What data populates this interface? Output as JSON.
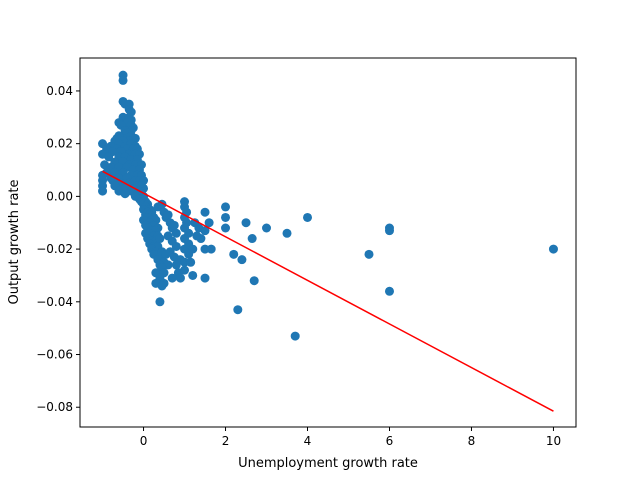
{
  "chart_data": {
    "type": "scatter",
    "xlabel": "Unemployment growth rate",
    "ylabel": "Output growth rate",
    "xlim": [
      -1.55,
      10.55
    ],
    "ylim": [
      -0.0875,
      0.0525
    ],
    "x_ticks": [
      {
        "value": 0,
        "label": "0"
      },
      {
        "value": 2,
        "label": "2"
      },
      {
        "value": 4,
        "label": "4"
      },
      {
        "value": 6,
        "label": "6"
      },
      {
        "value": 8,
        "label": "8"
      },
      {
        "value": 10,
        "label": "10"
      }
    ],
    "y_ticks": [
      {
        "value": 0.04,
        "label": "0.04"
      },
      {
        "value": 0.02,
        "label": "0.02"
      },
      {
        "value": 0.0,
        "label": "0.00"
      },
      {
        "value": -0.02,
        "label": "−0.02"
      },
      {
        "value": -0.04,
        "label": "−0.04"
      },
      {
        "value": -0.06,
        "label": "−0.06"
      },
      {
        "value": -0.08,
        "label": "−0.08"
      }
    ],
    "grid": false,
    "series": [
      {
        "kind": "scatter",
        "color": "#1f77b4",
        "points": [
          [
            -0.5,
            0.046
          ],
          [
            -0.5,
            0.044
          ],
          [
            -0.5,
            0.036
          ],
          [
            -0.45,
            0.035
          ],
          [
            -0.35,
            0.035
          ],
          [
            -0.35,
            0.033
          ],
          [
            -0.3,
            0.032
          ],
          [
            -0.5,
            0.03
          ],
          [
            -0.45,
            0.029
          ],
          [
            -0.35,
            0.03
          ],
          [
            -0.3,
            0.029
          ],
          [
            -0.4,
            0.028
          ],
          [
            -0.6,
            0.028
          ],
          [
            -0.55,
            0.027
          ],
          [
            -0.3,
            0.027
          ],
          [
            -0.25,
            0.026
          ],
          [
            -0.3,
            0.025
          ],
          [
            -0.45,
            0.025
          ],
          [
            -0.4,
            0.024
          ],
          [
            -0.6,
            0.023
          ],
          [
            -0.65,
            0.022
          ],
          [
            -0.55,
            0.022
          ],
          [
            -0.4,
            0.022
          ],
          [
            -0.3,
            0.023
          ],
          [
            -0.25,
            0.022
          ],
          [
            -0.2,
            0.022
          ],
          [
            -0.35,
            0.021
          ],
          [
            -0.5,
            0.021
          ],
          [
            -0.7,
            0.021
          ],
          [
            -1.0,
            0.02
          ],
          [
            -0.6,
            0.02
          ],
          [
            -0.45,
            0.019
          ],
          [
            -0.3,
            0.02
          ],
          [
            -0.2,
            0.019
          ],
          [
            -0.8,
            0.019
          ],
          [
            -0.9,
            0.018
          ],
          [
            -0.65,
            0.018
          ],
          [
            -0.4,
            0.018
          ],
          [
            -0.25,
            0.018
          ],
          [
            -0.15,
            0.018
          ],
          [
            -1.0,
            0.016
          ],
          [
            -0.75,
            0.017
          ],
          [
            -0.55,
            0.017
          ],
          [
            -0.35,
            0.016
          ],
          [
            -0.2,
            0.016
          ],
          [
            -0.1,
            0.016
          ],
          [
            -0.85,
            0.015
          ],
          [
            -0.6,
            0.015
          ],
          [
            -0.45,
            0.015
          ],
          [
            -0.3,
            0.014
          ],
          [
            -0.15,
            0.014
          ],
          [
            -0.7,
            0.013
          ],
          [
            -0.5,
            0.013
          ],
          [
            -0.35,
            0.012
          ],
          [
            -0.2,
            0.012
          ],
          [
            -0.05,
            0.012
          ],
          [
            -0.95,
            0.012
          ],
          [
            -0.8,
            0.011
          ],
          [
            -0.6,
            0.011
          ],
          [
            -0.4,
            0.011
          ],
          [
            -0.25,
            0.01
          ],
          [
            -0.1,
            0.01
          ],
          [
            -0.9,
            0.009
          ],
          [
            -0.7,
            0.009
          ],
          [
            -0.5,
            0.009
          ],
          [
            -0.3,
            0.008
          ],
          [
            -0.15,
            0.008
          ],
          [
            -0.05,
            0.008
          ],
          [
            -1.0,
            0.008
          ],
          [
            -0.8,
            0.007
          ],
          [
            -0.6,
            0.007
          ],
          [
            -0.4,
            0.007
          ],
          [
            -0.2,
            0.006
          ],
          [
            -0.1,
            0.006
          ],
          [
            0.0,
            0.006
          ],
          [
            -1.0,
            0.006
          ],
          [
            -0.75,
            0.006
          ],
          [
            -0.55,
            0.005
          ],
          [
            -0.35,
            0.005
          ],
          [
            -0.15,
            0.004
          ],
          [
            -0.05,
            0.004
          ],
          [
            0.0,
            0.003
          ],
          [
            -1.0,
            0.004
          ],
          [
            -0.7,
            0.004
          ],
          [
            -0.45,
            0.003
          ],
          [
            -0.25,
            0.003
          ],
          [
            -0.1,
            0.002
          ],
          [
            -1.0,
            0.002
          ],
          [
            -0.6,
            0.002
          ],
          [
            -0.3,
            0.002
          ],
          [
            -0.15,
            0.001
          ],
          [
            -0.05,
            0.001
          ],
          [
            0.0,
            0.0
          ],
          [
            -0.45,
            0.001
          ],
          [
            -0.2,
            0.0
          ],
          [
            -0.1,
            -0.001
          ],
          [
            0.0,
            -0.001
          ],
          [
            0.05,
            -0.002
          ],
          [
            -0.05,
            -0.002
          ],
          [
            0.0,
            -0.003
          ],
          [
            0.1,
            -0.003
          ],
          [
            0.05,
            -0.004
          ],
          [
            0.15,
            -0.005
          ],
          [
            0.0,
            -0.005
          ],
          [
            0.1,
            -0.006
          ],
          [
            0.2,
            -0.006
          ],
          [
            0.05,
            -0.007
          ],
          [
            0.15,
            -0.007
          ],
          [
            0.25,
            -0.008
          ],
          [
            0.1,
            -0.008
          ],
          [
            0.2,
            -0.009
          ],
          [
            0.0,
            -0.009
          ],
          [
            0.3,
            -0.009
          ],
          [
            0.15,
            -0.01
          ],
          [
            0.05,
            -0.011
          ],
          [
            0.25,
            -0.011
          ],
          [
            0.35,
            -0.012
          ],
          [
            0.1,
            -0.012
          ],
          [
            0.2,
            -0.013
          ],
          [
            0.3,
            -0.013
          ],
          [
            0.05,
            -0.014
          ],
          [
            0.15,
            -0.014
          ],
          [
            0.25,
            -0.015
          ],
          [
            0.35,
            -0.015
          ],
          [
            0.1,
            -0.016
          ],
          [
            0.2,
            -0.017
          ],
          [
            0.3,
            -0.017
          ],
          [
            0.4,
            -0.016
          ],
          [
            0.15,
            -0.018
          ],
          [
            0.25,
            -0.019
          ],
          [
            0.35,
            -0.019
          ],
          [
            0.2,
            -0.02
          ],
          [
            0.3,
            -0.021
          ],
          [
            0.45,
            -0.021
          ],
          [
            0.25,
            -0.022
          ],
          [
            0.4,
            -0.023
          ],
          [
            0.55,
            -0.022
          ],
          [
            0.35,
            -0.024
          ],
          [
            0.5,
            -0.025
          ],
          [
            0.4,
            -0.026
          ],
          [
            0.6,
            -0.026
          ],
          [
            0.45,
            -0.027
          ],
          [
            0.3,
            -0.029
          ],
          [
            0.5,
            -0.029
          ],
          [
            0.4,
            -0.031
          ],
          [
            0.3,
            -0.033
          ],
          [
            0.5,
            -0.033
          ],
          [
            0.45,
            -0.034
          ],
          [
            0.4,
            -0.04
          ],
          [
            0.35,
            -0.004
          ],
          [
            0.45,
            -0.003
          ],
          [
            0.5,
            -0.006
          ],
          [
            0.55,
            -0.008
          ],
          [
            0.6,
            -0.007
          ],
          [
            0.65,
            -0.01
          ],
          [
            0.7,
            -0.012
          ],
          [
            0.75,
            -0.011
          ],
          [
            0.8,
            -0.014
          ],
          [
            0.6,
            -0.015
          ],
          [
            0.7,
            -0.017
          ],
          [
            0.8,
            -0.019
          ],
          [
            0.65,
            -0.021
          ],
          [
            0.75,
            -0.023
          ],
          [
            0.9,
            -0.024
          ],
          [
            0.8,
            -0.026
          ],
          [
            0.85,
            -0.029
          ],
          [
            0.7,
            -0.031
          ],
          [
            0.9,
            -0.031
          ],
          [
            1.0,
            -0.028
          ],
          [
            1.0,
            -0.025
          ],
          [
            1.0,
            -0.02
          ],
          [
            1.0,
            -0.016
          ],
          [
            1.0,
            -0.012
          ],
          [
            1.0,
            -0.008
          ],
          [
            1.0,
            -0.004
          ],
          [
            1.0,
            -0.002
          ],
          [
            1.05,
            -0.006
          ],
          [
            1.05,
            -0.01
          ],
          [
            1.1,
            -0.014
          ],
          [
            1.1,
            -0.018
          ],
          [
            1.1,
            -0.022
          ],
          [
            1.15,
            -0.025
          ],
          [
            1.2,
            -0.03
          ],
          [
            1.2,
            -0.02
          ],
          [
            1.25,
            -0.01
          ],
          [
            1.3,
            -0.015
          ],
          [
            1.35,
            -0.012
          ],
          [
            1.4,
            -0.016
          ],
          [
            1.5,
            -0.006
          ],
          [
            1.5,
            -0.013
          ],
          [
            1.5,
            -0.02
          ],
          [
            1.5,
            -0.031
          ],
          [
            1.6,
            -0.01
          ],
          [
            1.65,
            -0.02
          ],
          [
            2.0,
            -0.004
          ],
          [
            2.0,
            -0.008
          ],
          [
            2.0,
            -0.012
          ],
          [
            2.2,
            -0.022
          ],
          [
            2.3,
            -0.043
          ],
          [
            2.4,
            -0.024
          ],
          [
            2.5,
            -0.01
          ],
          [
            2.65,
            -0.016
          ],
          [
            2.7,
            -0.032
          ],
          [
            3.0,
            -0.012
          ],
          [
            3.5,
            -0.014
          ],
          [
            3.7,
            -0.053
          ],
          [
            4.0,
            -0.008
          ],
          [
            5.5,
            -0.022
          ],
          [
            6.0,
            -0.012
          ],
          [
            6.0,
            -0.013
          ],
          [
            6.0,
            -0.036
          ],
          [
            10.0,
            -0.02
          ]
        ]
      },
      {
        "kind": "line",
        "color": "#ff0000",
        "points": [
          [
            -1.0,
            0.0095
          ],
          [
            10.0,
            -0.0815
          ]
        ]
      }
    ]
  }
}
